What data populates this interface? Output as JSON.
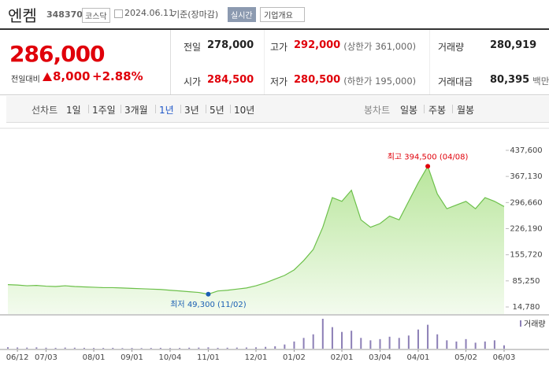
{
  "header": {
    "title": "엔켐",
    "code": "348370",
    "market": "코스닥",
    "date": "2024.06.11",
    "basis": "기준(장마감)",
    "realtime": "실시간",
    "company_info": "기업개요"
  },
  "price": {
    "current": "286,000",
    "change_label": "전일대비",
    "change": "8,000",
    "change_rate": "+2.88%"
  },
  "summary": {
    "rows": [
      [
        {
          "label": "전일",
          "value": "278,000"
        },
        {
          "label": "고가",
          "value": "292,000",
          "note": "(상한가 361,000)"
        },
        {
          "label": "거래량",
          "value": "280,919"
        }
      ],
      [
        {
          "label": "시가",
          "value": "284,500"
        },
        {
          "label": "저가",
          "value": "280,500",
          "note": "(하한가 195,000)"
        },
        {
          "label": "거래대금",
          "value": "80,395",
          "note": "백만"
        }
      ]
    ]
  },
  "tabs": {
    "line_label": "선차트",
    "line": [
      "1일",
      "1주일",
      "3개월",
      "1년",
      "3년",
      "5년",
      "10년"
    ],
    "selected": 3,
    "candle_label": "봉차트",
    "candle": [
      "일봉",
      "주봉",
      "월봉"
    ]
  },
  "chart_data": {
    "type": "line",
    "color": "#6cc04a",
    "fill": true,
    "grid": false,
    "categories": [
      null,
      "06/12",
      null,
      null,
      "07/03",
      null,
      null,
      null,
      null,
      "08/01",
      null,
      null,
      null,
      "09/01",
      null,
      null,
      null,
      "10/04",
      null,
      null,
      null,
      "11/01",
      null,
      null,
      null,
      null,
      "12/01",
      null,
      null,
      null,
      "01/02",
      null,
      null,
      null,
      null,
      "02/01",
      null,
      null,
      null,
      "03/04",
      null,
      null,
      null,
      "04/01",
      null,
      null,
      null,
      null,
      "05/02",
      null,
      null,
      null,
      "06/03"
    ],
    "values": [
      75000,
      74000,
      72000,
      73000,
      71000,
      70000,
      72000,
      70000,
      69000,
      68000,
      67000,
      67000,
      66000,
      65000,
      64000,
      63000,
      62000,
      60000,
      58000,
      56000,
      54000,
      49300,
      58000,
      60000,
      63000,
      66000,
      72000,
      80000,
      90000,
      100000,
      115000,
      140000,
      170000,
      230000,
      310000,
      300000,
      330000,
      250000,
      230000,
      240000,
      260000,
      250000,
      300000,
      350000,
      394500,
      320000,
      280000,
      290000,
      300000,
      280000,
      310000,
      300000,
      286000
    ],
    "ylim": [
      14780,
      437600
    ],
    "yticks": [
      {
        "value": 14780,
        "label": "14,780"
      },
      {
        "value": 85250,
        "label": "85,250"
      },
      {
        "value": 155720,
        "label": "155,720"
      },
      {
        "value": 226190,
        "label": "226,190"
      },
      {
        "value": 296660,
        "label": "296,660"
      },
      {
        "value": 367130,
        "label": "367,130"
      },
      {
        "value": 437600,
        "label": "437,600"
      }
    ],
    "high_label": "최고 394,500 (04/08)",
    "high_color": "#e0000a",
    "low_label": "최저 49,300 (11/02)",
    "low_color": "#1a5fb4",
    "volume": {
      "name": "거래량",
      "color": "#8c7fb6",
      "values": [
        120000,
        100000,
        90000,
        110000,
        80000,
        70000,
        90000,
        80000,
        70000,
        60000,
        60000,
        70000,
        50000,
        60000,
        50000,
        60000,
        70000,
        50000,
        60000,
        80000,
        90000,
        110000,
        70000,
        80000,
        90000,
        100000,
        110000,
        150000,
        200000,
        350000,
        600000,
        900000,
        1200000,
        2500000,
        1800000,
        1400000,
        1500000,
        900000,
        700000,
        800000,
        1000000,
        900000,
        1100000,
        1600000,
        2000000,
        1200000,
        700000,
        600000,
        800000,
        500000,
        600000,
        700000,
        280919
      ]
    }
  }
}
